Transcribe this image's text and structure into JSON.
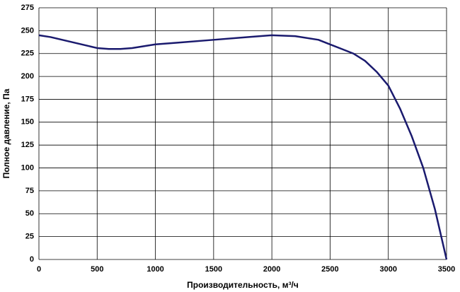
{
  "chart_data": {
    "type": "line",
    "xlabel": "Производительность,  м³/ч",
    "ylabel": "Полное  давление, Па",
    "x": [
      0,
      100,
      200,
      300,
      400,
      500,
      600,
      700,
      800,
      1000,
      1200,
      1500,
      1800,
      2000,
      2200,
      2400,
      2500,
      2600,
      2700,
      2800,
      2900,
      3000,
      3100,
      3200,
      3300,
      3400,
      3500
    ],
    "series": [
      {
        "color": "#1a1a6e",
        "values": [
          245,
          243,
          240,
          237,
          234,
          231,
          230,
          230,
          231,
          235,
          237,
          240,
          243,
          245,
          244,
          240,
          235,
          230,
          225,
          217,
          205,
          190,
          165,
          135,
          100,
          55,
          0
        ]
      }
    ],
    "xlim": [
      0,
      3500
    ],
    "xticks": [
      0,
      500,
      1000,
      1500,
      2000,
      2500,
      3000,
      3500
    ],
    "ylim": [
      0,
      275
    ],
    "yticks": [
      0,
      25,
      50,
      75,
      100,
      125,
      150,
      175,
      200,
      225,
      250,
      275
    ],
    "grid": true
  }
}
